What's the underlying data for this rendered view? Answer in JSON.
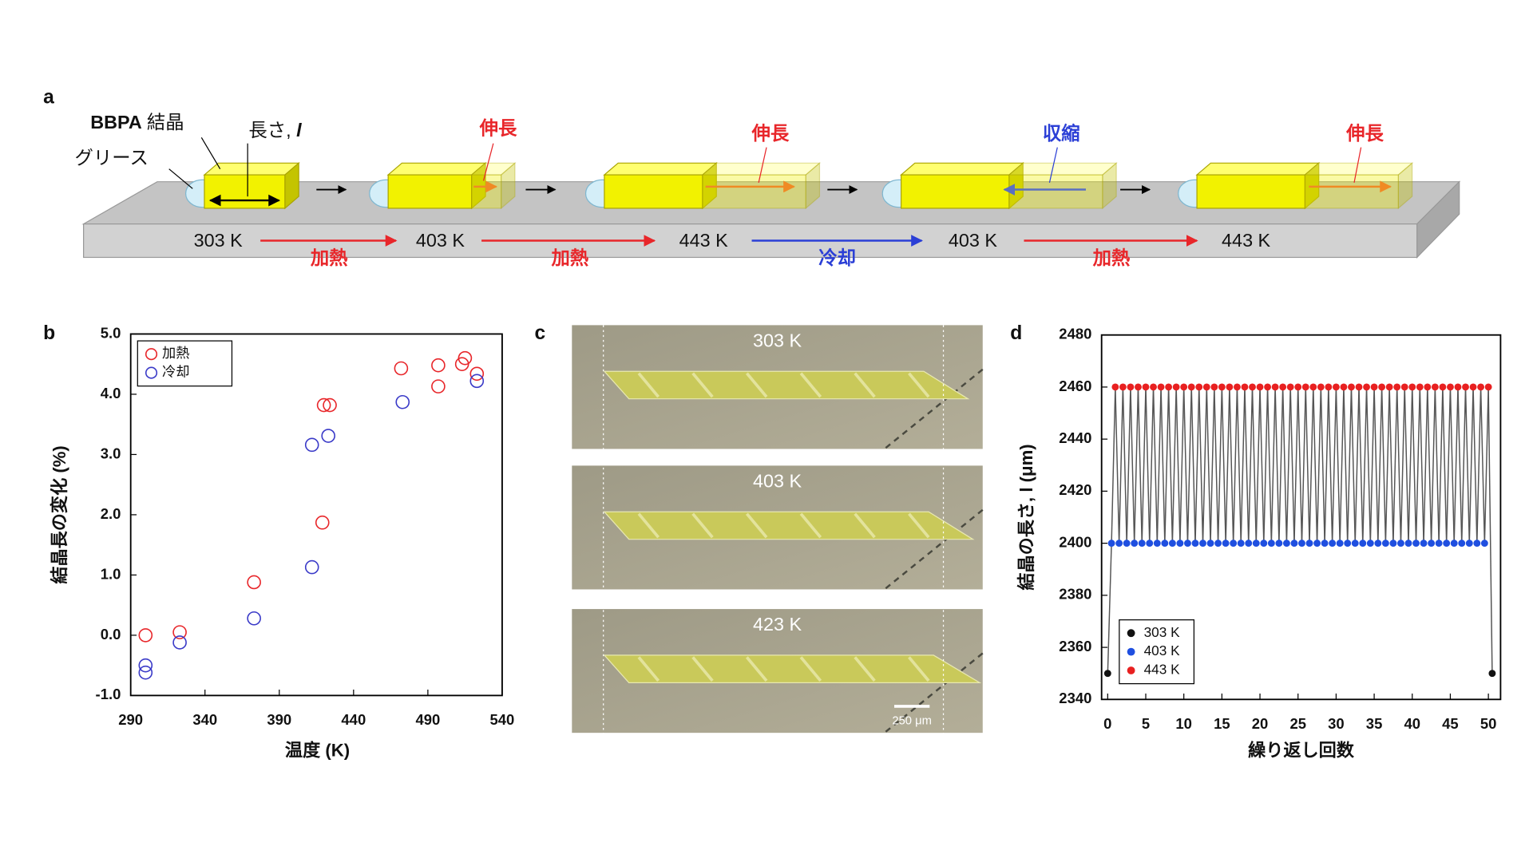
{
  "panel_labels": [
    "a",
    "b",
    "c",
    "d"
  ],
  "diagram": {
    "crystal_name": "BBPA",
    "crystal_word": "結晶",
    "length_label": "長さ, ",
    "length_symbol": "l",
    "grease_label": "グリース",
    "change_labels": [
      "伸長",
      "伸長",
      "収縮",
      "伸長"
    ],
    "temperatures": [
      "303 K",
      "403 K",
      "443 K",
      "403 K",
      "443 K"
    ],
    "process_labels": [
      "加熱",
      "加熱",
      "冷却",
      "加熱"
    ]
  },
  "micrographs": {
    "temperatures": [
      "303 K",
      "403 K",
      "423 K"
    ],
    "scale_bar": "250 μm"
  },
  "chart_data": [
    {
      "type": "scatter",
      "x_label": "温度 (K)",
      "y_label": "結晶長の変化 (%)",
      "xlim": [
        290,
        540
      ],
      "xticks": [
        290,
        340,
        390,
        440,
        490,
        540
      ],
      "ylim": [
        -1,
        5
      ],
      "yticks": [
        {
          "value": -1,
          "label": "-1.0"
        },
        {
          "value": 0,
          "label": "0.0"
        },
        {
          "value": 1,
          "label": "1.0"
        },
        {
          "value": 2,
          "label": "2.0"
        },
        {
          "value": 3,
          "label": "3.0"
        },
        {
          "value": 4,
          "label": "4.0"
        },
        {
          "value": 5,
          "label": "5.0"
        }
      ],
      "legend": "upper left",
      "series": [
        {
          "name": "加熱",
          "color": "#e8262a",
          "x": [
            300,
            323,
            373,
            419,
            420,
            424,
            472,
            497,
            497,
            513,
            515,
            523
          ],
          "values": [
            0.0,
            0.05,
            0.88,
            1.87,
            3.82,
            3.82,
            4.43,
            4.48,
            4.13,
            4.5,
            4.6,
            4.34
          ]
        },
        {
          "name": "冷却",
          "color": "#3a3ac8",
          "x": [
            300,
            300,
            323,
            373,
            412,
            412,
            423,
            473,
            523
          ],
          "values": [
            -0.62,
            -0.5,
            -0.12,
            0.28,
            1.13,
            3.16,
            3.31,
            3.87,
            4.22
          ]
        }
      ]
    },
    {
      "type": "scatter",
      "connect": true,
      "line_color": "#555555",
      "x_label": "繰り返し回数",
      "y_label": "結晶の長さ, l (μm)",
      "xlim": [
        -0.8,
        51.6
      ],
      "xticks": [
        0,
        5,
        10,
        15,
        20,
        25,
        30,
        35,
        40,
        45,
        50
      ],
      "ylim": [
        2340,
        2480
      ],
      "yticks": [
        2340,
        2360,
        2380,
        2400,
        2420,
        2440,
        2460,
        2480
      ],
      "legend": "lower left",
      "series": [
        {
          "name": "303 K",
          "color": "#111111",
          "x": [
            0,
            50.5
          ],
          "values": [
            2350,
            2350
          ]
        },
        {
          "name": "403 K",
          "color": "#1f4fe0",
          "x": [
            0.5,
            1.5,
            2.5,
            3.5,
            4.5,
            5.5,
            6.5,
            7.5,
            8.5,
            9.5,
            10.5,
            11.5,
            12.5,
            13.5,
            14.5,
            15.5,
            16.5,
            17.5,
            18.5,
            19.5,
            20.5,
            21.5,
            22.5,
            23.5,
            24.5,
            25.5,
            26.5,
            27.5,
            28.5,
            29.5,
            30.5,
            31.5,
            32.5,
            33.5,
            34.5,
            35.5,
            36.5,
            37.5,
            38.5,
            39.5,
            40.5,
            41.5,
            42.5,
            43.5,
            44.5,
            45.5,
            46.5,
            47.5,
            48.5,
            49.5
          ],
          "values": [
            2400,
            2400,
            2400,
            2400,
            2400,
            2400,
            2400,
            2400,
            2400,
            2400,
            2400,
            2400,
            2400,
            2400,
            2400,
            2400,
            2400,
            2400,
            2400,
            2400,
            2400,
            2400,
            2400,
            2400,
            2400,
            2400,
            2400,
            2400,
            2400,
            2400,
            2400,
            2400,
            2400,
            2400,
            2400,
            2400,
            2400,
            2400,
            2400,
            2400,
            2400,
            2400,
            2400,
            2400,
            2400,
            2400,
            2400,
            2400,
            2400,
            2400
          ]
        },
        {
          "name": "443 K",
          "color": "#e82020",
          "x": [
            1,
            2,
            3,
            4,
            5,
            6,
            7,
            8,
            9,
            10,
            11,
            12,
            13,
            14,
            15,
            16,
            17,
            18,
            19,
            20,
            21,
            22,
            23,
            24,
            25,
            26,
            27,
            28,
            29,
            30,
            31,
            32,
            33,
            34,
            35,
            36,
            37,
            38,
            39,
            40,
            41,
            42,
            43,
            44,
            45,
            46,
            47,
            48,
            49,
            50
          ],
          "values": [
            2460,
            2460,
            2460,
            2460,
            2460,
            2460,
            2460,
            2460,
            2460,
            2460,
            2460,
            2460,
            2460,
            2460,
            2460,
            2460,
            2460,
            2460,
            2460,
            2460,
            2460,
            2460,
            2460,
            2460,
            2460,
            2460,
            2460,
            2460,
            2460,
            2460,
            2460,
            2460,
            2460,
            2460,
            2460,
            2460,
            2460,
            2460,
            2460,
            2460,
            2460,
            2460,
            2460,
            2460,
            2460,
            2460,
            2460,
            2460,
            2460,
            2460
          ]
        }
      ]
    }
  ]
}
